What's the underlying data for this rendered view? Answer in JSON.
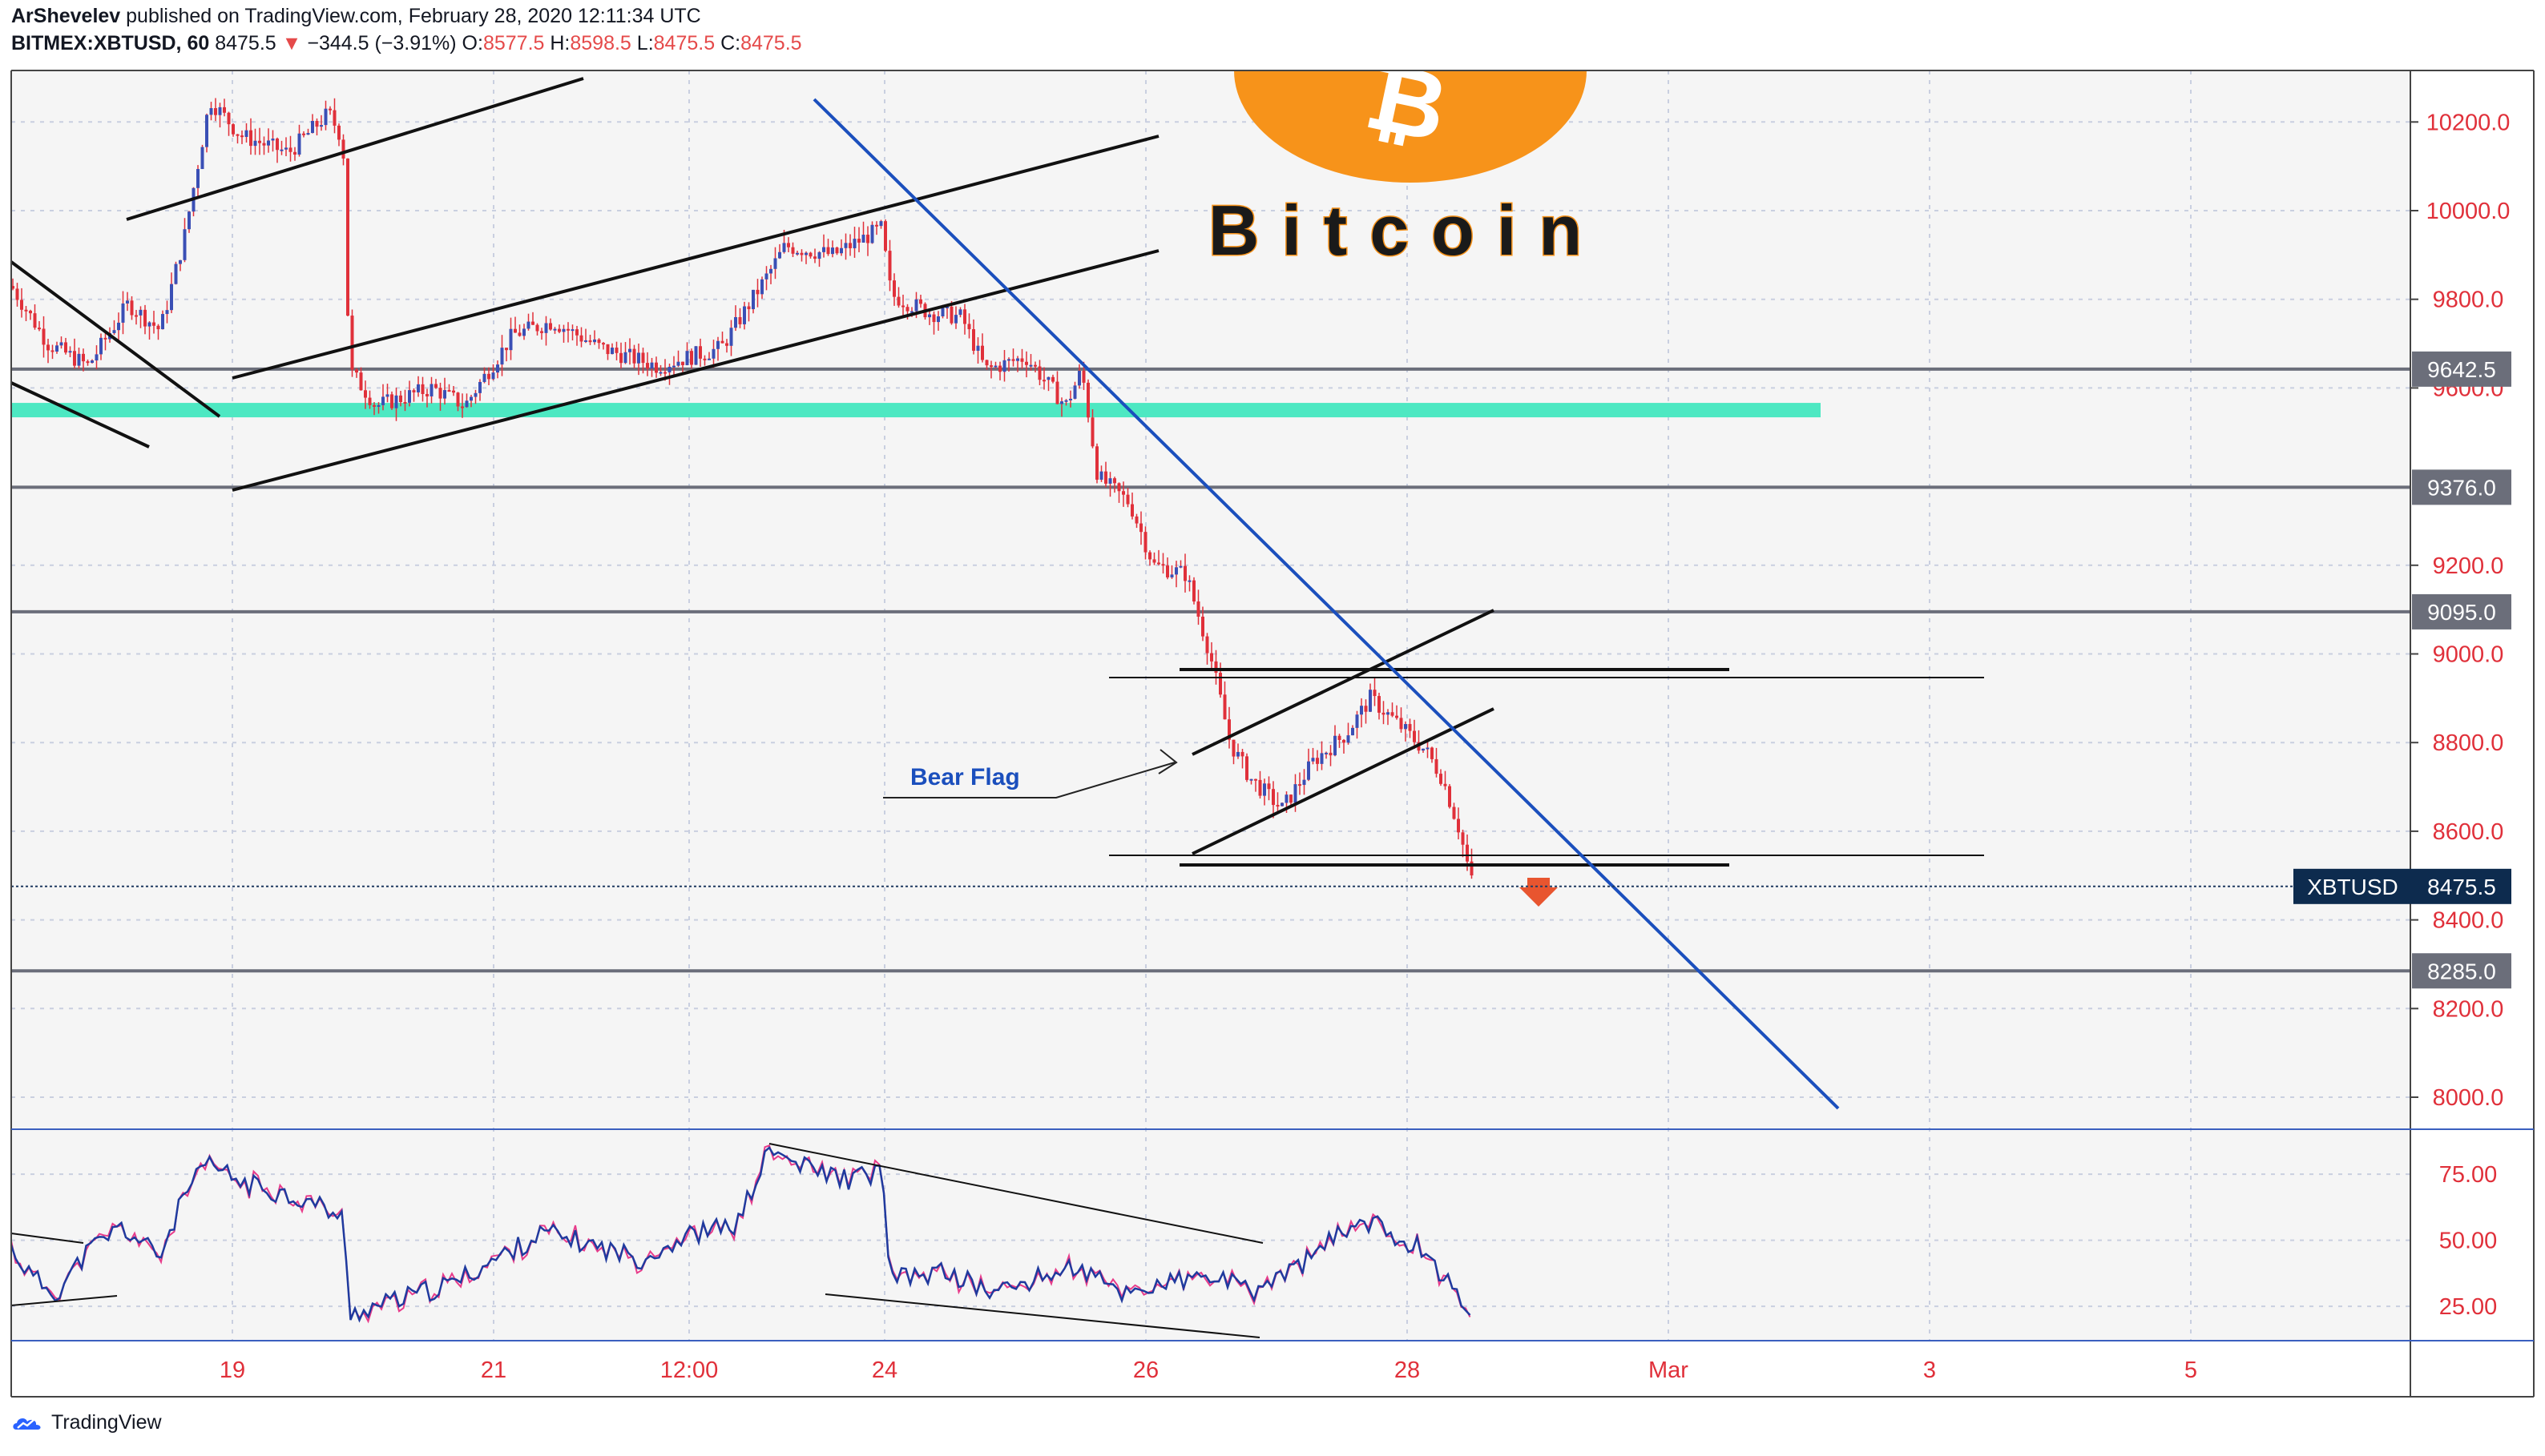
{
  "header": {
    "author": "ArShevelev",
    "published_text": "published on TradingView.com, February 28, 2020 12:11:34 UTC",
    "symbol": "BITMEX:XBTUSD, 60",
    "last": "8475.5",
    "change": "−344.5 (−3.91%)",
    "o_label": "O:",
    "o_value": "8577.5",
    "h_label": "H:",
    "h_value": "8598.5",
    "l_label": "L:",
    "l_value": "8475.5",
    "c_label": "C:",
    "c_value": "8475.5"
  },
  "logo": {
    "text": "Bitcoin",
    "symbol": "₿",
    "color": "#f7931a"
  },
  "annotations": {
    "bear_flag": "Bear Flag"
  },
  "footer": {
    "brand": "TradingView"
  },
  "colors": {
    "up_candle": "#3a4fb5",
    "down_candle": "#e0303a",
    "trendline_blue": "#1b4fbd",
    "support_band": "#4de8c2",
    "price_red": "#e54a4a",
    "rsi_line": "#1f3a9e",
    "rsi_signal": "#e83b8a"
  },
  "chart_data": [
    {
      "type": "candlestick",
      "name": "XBTUSD",
      "x_ticks": [
        "19",
        "21",
        "12:00",
        "24",
        "26",
        "28",
        "Mar",
        "3",
        "5"
      ],
      "y_ticks": [
        "10200.0",
        "10000.0",
        "9800.0",
        "9600.0",
        "9200.0",
        "9000.0",
        "8800.0",
        "8600.0",
        "8400.0",
        "8200.0",
        "8000.0"
      ],
      "ylim": [
        7910,
        10290
      ],
      "last_price_label": "XBTUSD",
      "last_price": 8475.5,
      "horizontal_levels": [
        {
          "label": "9642.5",
          "value": 9642.5
        },
        {
          "label": "9376.0",
          "value": 9376.0
        },
        {
          "label": "9095.0",
          "value": 9095.0
        },
        {
          "label": "8285.0",
          "value": 8285.0
        }
      ],
      "support_zone": 9550,
      "grid": true
    },
    {
      "type": "line",
      "name": "RSI",
      "y_ticks": [
        "75.00",
        "50.00",
        "25.00"
      ],
      "ylim": [
        12,
        92
      ],
      "grid": true
    }
  ]
}
